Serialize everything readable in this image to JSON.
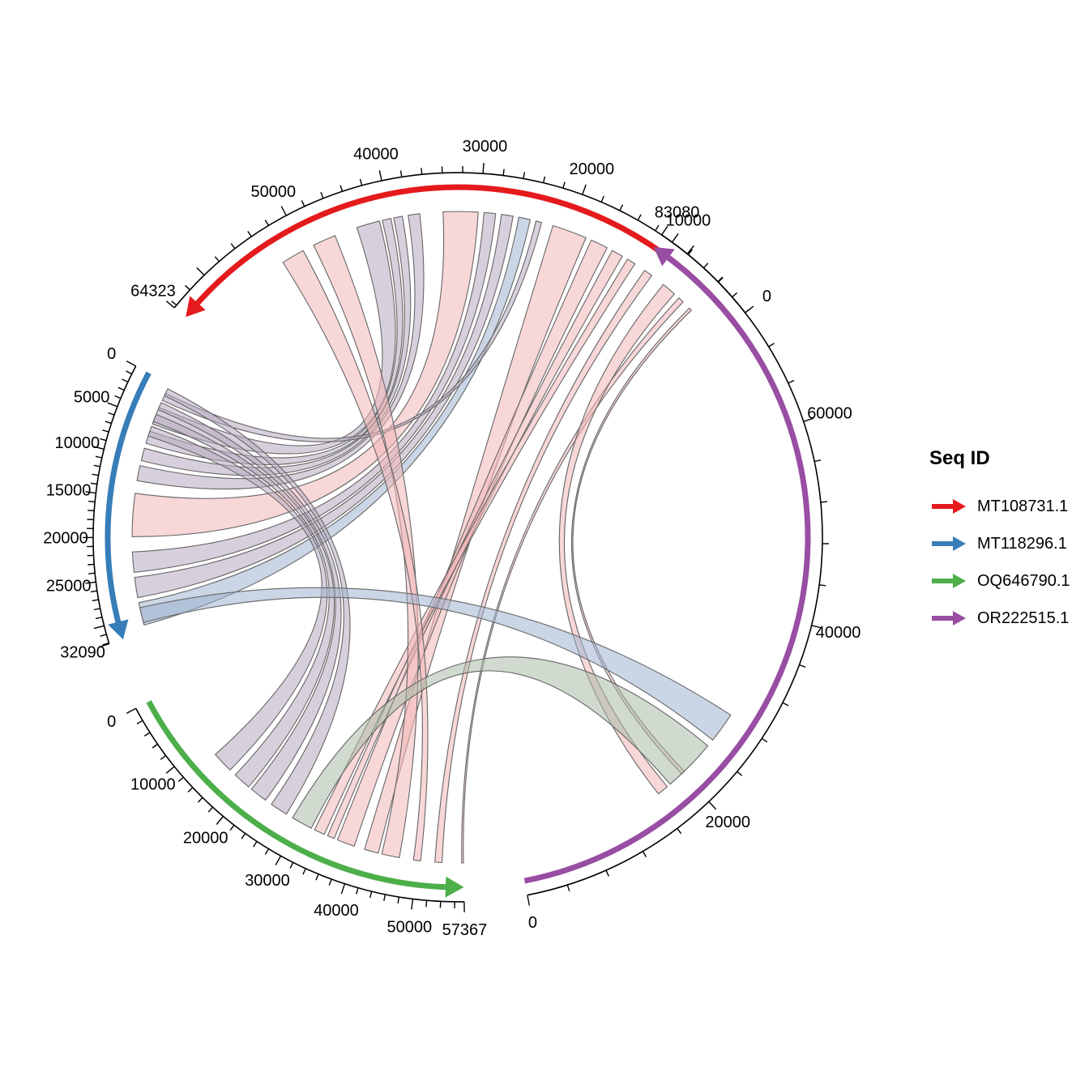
{
  "legend": {
    "title": "Seq ID",
    "items": [
      {
        "label": "MT108731.1",
        "color": "#E41A1C"
      },
      {
        "label": "MT118296.1",
        "color": "#377EB8"
      },
      {
        "label": "OQ646790.1",
        "color": "#4DAF4A"
      },
      {
        "label": "OR222515.1",
        "color": "#984EA3"
      }
    ]
  },
  "segments": [
    {
      "id": "MT108731.1",
      "length": 64323,
      "color": "#E41A1C",
      "direction": "reverse",
      "tick_labels": [
        "0",
        "10000",
        "20000",
        "30000",
        "40000",
        "50000",
        "64323"
      ]
    },
    {
      "id": "MT118296.1",
      "length": 32090,
      "color": "#377EB8",
      "direction": "forward",
      "tick_labels": [
        "0",
        "5000",
        "10000",
        "15000",
        "20000",
        "25000",
        "32090"
      ]
    },
    {
      "id": "OQ646790.1",
      "length": 57367,
      "color": "#4DAF4A",
      "direction": "forward",
      "tick_labels": [
        "0",
        "10000",
        "20000",
        "30000",
        "40000",
        "50000",
        "57367"
      ]
    },
    {
      "id": "OR222515.1",
      "length": 83080,
      "color": "#984EA3",
      "direction": "forward",
      "tick_labels": [
        "0",
        "20000",
        "40000",
        "60000",
        "83080"
      ]
    }
  ],
  "links": [
    {
      "from": "MT108731.1",
      "to": "MT118296.1",
      "count": 9
    },
    {
      "from": "MT108731.1",
      "to": "OQ646790.1",
      "count": 8
    },
    {
      "from": "MT108731.1",
      "to": "OR222515.1",
      "count": 2
    },
    {
      "from": "MT118296.1",
      "to": "OQ646790.1",
      "count": 4
    },
    {
      "from": "MT118296.1",
      "to": "OR222515.1",
      "count": 1
    },
    {
      "from": "OQ646790.1",
      "to": "OR222515.1",
      "count": 1
    }
  ]
}
